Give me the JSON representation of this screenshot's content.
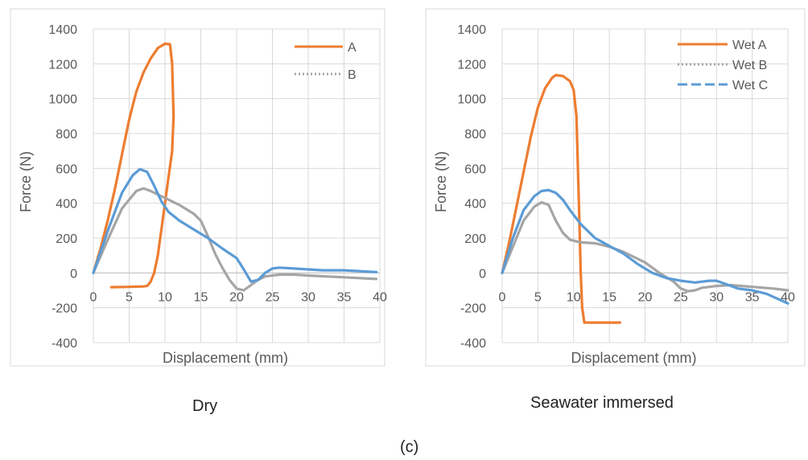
{
  "colors": {
    "orange": "#ED7D31",
    "gray": "#A5A5A5",
    "blue": "#5B9BD5",
    "grid": "#D9D9D9",
    "frame": "#D9D9D9"
  },
  "captions": {
    "left": "Dry",
    "right": "Seawater immersed",
    "figure": "(c)"
  },
  "chart_data": [
    {
      "type": "line",
      "title": "",
      "xlabel": "Displacement (mm)",
      "ylabel": "Force (N)",
      "xlim": [
        0,
        40
      ],
      "ylim": [
        -400,
        1400
      ],
      "xticks": [
        "0",
        "5",
        "10",
        "15",
        "20",
        "25",
        "30",
        "35",
        "40"
      ],
      "yticks": [
        "-400",
        "-200",
        "0",
        "200",
        "400",
        "600",
        "800",
        "1000",
        "1200",
        "1400"
      ],
      "grid": true,
      "legend_position": "top-right",
      "series": [
        {
          "name": "A",
          "color": "#ED7D31",
          "dash": "solid",
          "in_legend": true,
          "points": [
            [
              0,
              0
            ],
            [
              1,
              140
            ],
            [
              2,
              300
            ],
            [
              3,
              480
            ],
            [
              4,
              680
            ],
            [
              5,
              880
            ],
            [
              6,
              1040
            ],
            [
              7,
              1150
            ],
            [
              8,
              1230
            ],
            [
              9,
              1290
            ],
            [
              10,
              1315
            ],
            [
              10.7,
              1312
            ],
            [
              11,
              1200
            ],
            [
              11.2,
              900
            ],
            [
              11,
              700
            ],
            [
              10.5,
              550
            ],
            [
              10,
              400
            ],
            [
              9.5,
              250
            ],
            [
              9,
              100
            ],
            [
              8.5,
              0
            ],
            [
              8,
              -50
            ],
            [
              7.5,
              -75
            ],
            [
              7,
              -78
            ],
            [
              5,
              -80
            ],
            [
              2.5,
              -82
            ]
          ]
        },
        {
          "name": "B",
          "color": "#A5A5A5",
          "dash": "dotted",
          "in_legend": true,
          "points": [
            [
              0,
              0
            ],
            [
              2,
              190
            ],
            [
              4,
              370
            ],
            [
              6,
              470
            ],
            [
              7,
              485
            ],
            [
              8,
              470
            ],
            [
              10,
              430
            ],
            [
              12,
              390
            ],
            [
              14,
              340
            ],
            [
              15,
              300
            ],
            [
              16,
              210
            ],
            [
              17,
              110
            ],
            [
              18,
              30
            ],
            [
              19,
              -40
            ],
            [
              20,
              -90
            ],
            [
              21,
              -100
            ],
            [
              22,
              -70
            ],
            [
              23,
              -40
            ],
            [
              24,
              -20
            ],
            [
              26,
              -10
            ],
            [
              28,
              -10
            ],
            [
              30,
              -15
            ],
            [
              35,
              -25
            ],
            [
              39.5,
              -35
            ]
          ]
        },
        {
          "name": "",
          "color": "#5B9BD5",
          "dash": "solid",
          "in_legend": false,
          "points": [
            [
              0,
              0
            ],
            [
              2,
              240
            ],
            [
              4,
              460
            ],
            [
              5.5,
              560
            ],
            [
              6.5,
              595
            ],
            [
              7.5,
              580
            ],
            [
              8.5,
              500
            ],
            [
              9.5,
              410
            ],
            [
              10.5,
              350
            ],
            [
              12,
              300
            ],
            [
              14,
              250
            ],
            [
              16,
              200
            ],
            [
              18,
              140
            ],
            [
              20,
              85
            ],
            [
              21,
              20
            ],
            [
              22,
              -50
            ],
            [
              23,
              -40
            ],
            [
              24,
              0
            ],
            [
              25,
              25
            ],
            [
              26,
              30
            ],
            [
              28,
              25
            ],
            [
              30,
              20
            ],
            [
              32,
              15
            ],
            [
              35,
              15
            ],
            [
              39.5,
              5
            ]
          ]
        }
      ]
    },
    {
      "type": "line",
      "title": "",
      "xlabel": "Displacement (mm)",
      "ylabel": "Force (N)",
      "xlim": [
        0,
        40
      ],
      "ylim": [
        -400,
        1400
      ],
      "xticks": [
        "0",
        "5",
        "10",
        "15",
        "20",
        "25",
        "30",
        "35",
        "40"
      ],
      "yticks": [
        "-400",
        "-200",
        "0",
        "200",
        "400",
        "600",
        "800",
        "1000",
        "1200",
        "1400"
      ],
      "grid": true,
      "legend_position": "top-right",
      "series": [
        {
          "name": "Wet A",
          "color": "#ED7D31",
          "dash": "solid",
          "in_legend": true,
          "points": [
            [
              0,
              0
            ],
            [
              1,
              180
            ],
            [
              2,
              380
            ],
            [
              3,
              580
            ],
            [
              4,
              780
            ],
            [
              5,
              950
            ],
            [
              6,
              1060
            ],
            [
              7,
              1120
            ],
            [
              7.5,
              1135
            ],
            [
              8.5,
              1130
            ],
            [
              9.5,
              1100
            ],
            [
              10,
              1050
            ],
            [
              10.4,
              900
            ],
            [
              10.6,
              600
            ],
            [
              10.8,
              300
            ],
            [
              11,
              0
            ],
            [
              11.2,
              -200
            ],
            [
              11.5,
              -285
            ],
            [
              13,
              -285
            ],
            [
              16.5,
              -285
            ]
          ]
        },
        {
          "name": "Wet B",
          "color": "#A5A5A5",
          "dash": "dotted",
          "in_legend": true,
          "points": [
            [
              0,
              0
            ],
            [
              1.5,
              150
            ],
            [
              3,
              300
            ],
            [
              4.5,
              380
            ],
            [
              5.5,
              405
            ],
            [
              6.5,
              390
            ],
            [
              7.5,
              300
            ],
            [
              8.5,
              230
            ],
            [
              9.5,
              190
            ],
            [
              11,
              175
            ],
            [
              13,
              170
            ],
            [
              15,
              150
            ],
            [
              17,
              120
            ],
            [
              20,
              60
            ],
            [
              22,
              0
            ],
            [
              24,
              -50
            ],
            [
              25,
              -90
            ],
            [
              26,
              -105
            ],
            [
              27,
              -100
            ],
            [
              28,
              -85
            ],
            [
              30,
              -75
            ],
            [
              32,
              -70
            ],
            [
              35,
              -80
            ],
            [
              38,
              -90
            ],
            [
              40,
              -100
            ]
          ]
        },
        {
          "name": "Wet C",
          "color": "#5B9BD5",
          "dash": "dashed",
          "in_legend": true,
          "points": [
            [
              0,
              0
            ],
            [
              1.5,
              200
            ],
            [
              3,
              360
            ],
            [
              4.5,
              440
            ],
            [
              5.5,
              470
            ],
            [
              6.5,
              475
            ],
            [
              7.5,
              460
            ],
            [
              8.5,
              420
            ],
            [
              9.5,
              360
            ],
            [
              11,
              280
            ],
            [
              13,
              200
            ],
            [
              15,
              155
            ],
            [
              17,
              110
            ],
            [
              19,
              50
            ],
            [
              21,
              0
            ],
            [
              23,
              -30
            ],
            [
              25,
              -45
            ],
            [
              27,
              -55
            ],
            [
              29,
              -45
            ],
            [
              30,
              -45
            ],
            [
              31,
              -60
            ],
            [
              33,
              -90
            ],
            [
              35,
              -100
            ],
            [
              37,
              -120
            ],
            [
              40,
              -175
            ]
          ]
        }
      ]
    }
  ]
}
